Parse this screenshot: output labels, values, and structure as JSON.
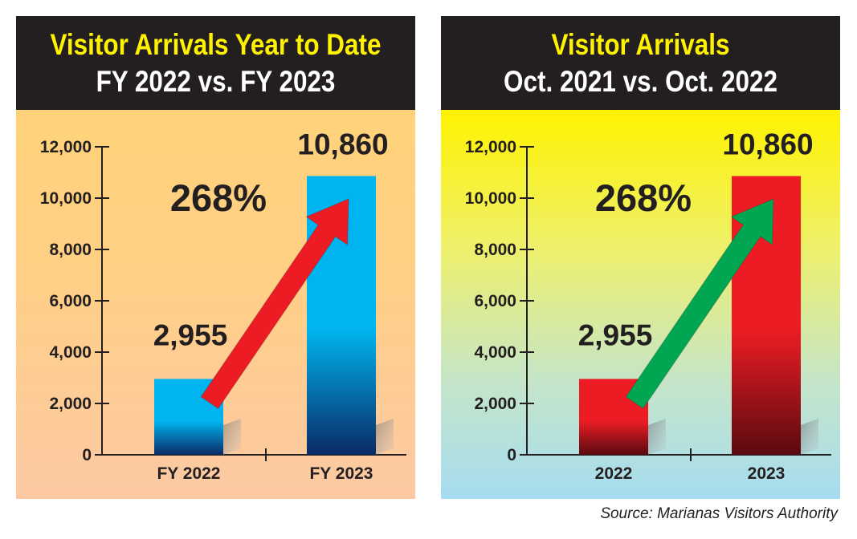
{
  "chart_data": [
    {
      "type": "bar",
      "title": "Visitor Arrivals Year to Date",
      "subtitle": "FY 2022 vs. FY 2023",
      "categories": [
        "FY 2022",
        "FY 2023"
      ],
      "values": [
        2955,
        10860
      ],
      "value_labels": [
        "2,955",
        "10,860"
      ],
      "annotation": "268%",
      "ylim": [
        0,
        12000
      ],
      "yticks": [
        0,
        2000,
        4000,
        6000,
        8000,
        10000,
        12000
      ],
      "ytick_labels": [
        "0",
        "2,000",
        "4,000",
        "6,000",
        "8,000",
        "10,000",
        "12,000"
      ],
      "grid": false,
      "bar_color_top": "#00b5ef",
      "bar_color_bottom": "#0a2a66",
      "arrow_color": "#ed1c24"
    },
    {
      "type": "bar",
      "title": "Visitor Arrivals",
      "subtitle": "Oct. 2021 vs. Oct. 2022",
      "categories": [
        "2022",
        "2023"
      ],
      "values": [
        2955,
        10860
      ],
      "value_labels": [
        "2,955",
        "10,860"
      ],
      "annotation": "268%",
      "ylim": [
        0,
        12000
      ],
      "yticks": [
        0,
        2000,
        4000,
        6000,
        8000,
        10000,
        12000
      ],
      "ytick_labels": [
        "0",
        "2,000",
        "4,000",
        "6,000",
        "8,000",
        "10,000",
        "12,000"
      ],
      "grid": false,
      "bar_color_top": "#ed1c24",
      "bar_color_bottom": "#5a0a10",
      "arrow_color": "#00a651"
    }
  ],
  "source": "Source: Marianas Visitors Authority"
}
